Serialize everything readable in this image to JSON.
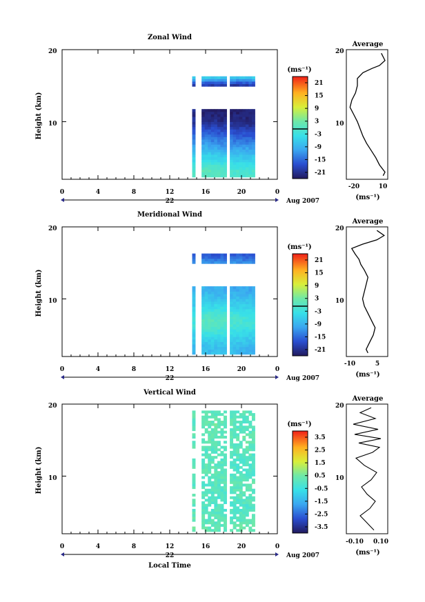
{
  "panels": [
    {
      "title": "Zonal Wind",
      "ylabel": "Height (km)",
      "yticks": [
        "20",
        "10"
      ],
      "xticks": [
        "0",
        "4",
        "8",
        "12",
        "16",
        "20",
        "0"
      ],
      "date_mark": "22",
      "date_label": "Aug 2007",
      "colorbar_unit": "(ms⁻¹)",
      "colorbar_ticks": [
        "21",
        "15",
        "9",
        "3",
        "-3",
        "-9",
        "-15",
        "-21"
      ],
      "avg_title": "Average",
      "avg_yticks": [
        "20",
        "10"
      ],
      "avg_xticks": [
        "-20",
        "10"
      ],
      "avg_xlabel": "(ms⁻¹)"
    },
    {
      "title": "Meridional Wind",
      "ylabel": "Height (km)",
      "yticks": [
        "20",
        "10"
      ],
      "xticks": [
        "0",
        "4",
        "8",
        "12",
        "16",
        "20",
        "0"
      ],
      "date_mark": "22",
      "date_label": "Aug 2007",
      "colorbar_unit": "(ms⁻¹)",
      "colorbar_ticks": [
        "21",
        "15",
        "9",
        "3",
        "-3",
        "-9",
        "-15",
        "-21"
      ],
      "avg_title": "Average",
      "avg_yticks": [
        "20",
        "10"
      ],
      "avg_xticks": [
        "-10",
        "5"
      ],
      "avg_xlabel": "(ms⁻¹)"
    },
    {
      "title": "Vertical Wind",
      "ylabel": "Height (km)",
      "yticks": [
        "20",
        "10"
      ],
      "xticks": [
        "0",
        "4",
        "8",
        "12",
        "16",
        "20",
        "0"
      ],
      "date_mark": "22",
      "date_label": "Aug 2007",
      "xlabel": "Local Time",
      "colorbar_unit": "(ms⁻¹)",
      "colorbar_ticks": [
        "3.5",
        "2.5",
        "1.5",
        "0.5",
        "-0.5",
        "-1.5",
        "-2.5",
        "-3.5"
      ],
      "avg_title": "Average",
      "avg_yticks": [
        "20",
        "10"
      ],
      "avg_xticks": [
        "-0.10",
        "0.10"
      ],
      "avg_xlabel": "(ms⁻¹)"
    }
  ],
  "chart_data": [
    {
      "type": "heatmap",
      "title": "Zonal Wind",
      "xlabel": "",
      "ylabel": "Height (km)",
      "xlim": [
        0,
        24
      ],
      "ylim": [
        2,
        20
      ],
      "colorbar_range": [
        -24,
        24
      ],
      "data_x_range": [
        14.5,
        21.5
      ],
      "data_heights": [
        3,
        4,
        5,
        6,
        7,
        8,
        9,
        10,
        11,
        15,
        16
      ],
      "profiles": [
        {
          "hour": 14.5,
          "values": [
            0,
            -3,
            -6,
            -9,
            -12,
            -15,
            -18,
            -21,
            -22,
            -19,
            -6
          ]
        },
        {
          "hour": 16.0,
          "values": [
            1,
            -2,
            -5,
            -8,
            -12,
            -15,
            -18,
            -21,
            -23,
            -19,
            -5
          ]
        },
        {
          "hour": 17.5,
          "values": [
            0,
            -3,
            -6,
            -10,
            -13,
            -16,
            -19,
            -22,
            -23,
            -20,
            -6
          ]
        },
        {
          "hour": 19.0,
          "values": [
            -1,
            -4,
            -7,
            -10,
            -13,
            -16,
            -19,
            -22,
            -23,
            -20,
            -7
          ]
        },
        {
          "hour": 20.5,
          "values": [
            -1,
            -4,
            -7,
            -10,
            -14,
            -17,
            -20,
            -22,
            -23,
            -19,
            -6
          ]
        }
      ],
      "gaps": [
        15.0,
        18.5
      ],
      "average_profile": {
        "x": [
          10,
          12,
          6,
          2,
          -3,
          -8,
          -12,
          -15,
          -18,
          -22,
          -26,
          -24,
          -20,
          -18,
          -18,
          -12,
          -2,
          6,
          12,
          8
        ],
        "y": [
          2.5,
          3,
          4,
          5,
          6,
          7,
          8,
          9,
          10,
          11,
          12,
          13,
          14,
          15,
          16,
          16.8,
          17.4,
          17.8,
          18.5,
          19.5
        ],
        "xlim": [
          -30,
          15
        ]
      }
    },
    {
      "type": "heatmap",
      "title": "Meridional Wind",
      "xlabel": "",
      "ylabel": "Height (km)",
      "xlim": [
        0,
        24
      ],
      "ylim": [
        2,
        20
      ],
      "colorbar_range": [
        -24,
        24
      ],
      "data_x_range": [
        14.5,
        21.5
      ],
      "data_heights": [
        3,
        4,
        5,
        6,
        7,
        8,
        9,
        10,
        11,
        15,
        16
      ],
      "profiles": [
        {
          "hour": 14.5,
          "values": [
            -8,
            -7,
            -5,
            -3,
            -2,
            -4,
            -6,
            -7,
            -8,
            -12,
            -16
          ]
        },
        {
          "hour": 16.0,
          "values": [
            -8,
            -6,
            -3,
            0,
            1,
            -2,
            -5,
            -7,
            -9,
            -12,
            -17
          ]
        },
        {
          "hour": 17.5,
          "values": [
            -7,
            -6,
            -3,
            -1,
            0,
            -2,
            -5,
            -8,
            -9,
            -13,
            -17
          ]
        },
        {
          "hour": 19.0,
          "values": [
            -8,
            -6,
            -4,
            -2,
            -1,
            -3,
            -6,
            -8,
            -10,
            -12,
            -16
          ]
        },
        {
          "hour": 20.5,
          "values": [
            -9,
            -7,
            -5,
            -3,
            -2,
            -4,
            -6,
            -8,
            -10,
            -13,
            -17
          ]
        }
      ],
      "gaps": [
        15.0,
        18.5
      ],
      "average_profile": {
        "x": [
          -3,
          -4,
          -2,
          0,
          1,
          -1,
          -3,
          -5,
          -6,
          -5,
          -4,
          -3,
          -5,
          -7,
          -8,
          -10,
          -12,
          -6,
          2,
          6,
          2
        ],
        "y": [
          2.5,
          3,
          4,
          5,
          6,
          7,
          8,
          9,
          10,
          11,
          12,
          13,
          14,
          14.8,
          15.5,
          16.2,
          17,
          17.6,
          18.2,
          18.8,
          19.5
        ],
        "xlim": [
          -15,
          8
        ]
      }
    },
    {
      "type": "heatmap",
      "title": "Vertical Wind",
      "xlabel": "Local Time",
      "ylabel": "Height (km)",
      "xlim": [
        0,
        24
      ],
      "ylim": [
        2,
        20
      ],
      "colorbar_range": [
        -4,
        4
      ],
      "data_x_range": [
        14.5,
        21.5
      ],
      "data_heights": [
        3,
        5,
        7,
        9,
        11,
        13,
        15,
        17,
        19
      ],
      "profiles": [
        {
          "hour": 14.5,
          "values": [
            0.4,
            0.1,
            0.3,
            -0.1,
            0.2,
            0.0,
            0.3,
            0.1,
            0.2
          ]
        },
        {
          "hour": 17.0,
          "values": [
            0.2,
            0.0,
            -0.2,
            0.1,
            0.3,
            -0.1,
            0.2,
            0.4,
            0.0
          ]
        },
        {
          "hour": 19.5,
          "values": [
            0.3,
            -0.1,
            0.1,
            0.2,
            -0.2,
            0.1,
            0.3,
            0.0,
            0.2
          ]
        }
      ],
      "gaps": [
        15.0,
        18.5
      ],
      "average_profile": {
        "x": [
          0.05,
          0.0,
          -0.05,
          0.02,
          0.06,
          0.0,
          -0.04,
          0.03,
          0.07,
          -0.02,
          -0.08,
          0.04,
          0.09,
          -0.06,
          0.1,
          -0.09,
          0.08,
          -0.1,
          0.06,
          -0.05,
          0.03
        ],
        "y": [
          2.5,
          3.5,
          4.5,
          5.5,
          6.5,
          7.5,
          8.5,
          9.5,
          10.5,
          11.5,
          12.5,
          13.3,
          14,
          14.6,
          15.2,
          15.8,
          16.5,
          17.2,
          18,
          18.8,
          19.5
        ],
        "xlim": [
          -0.15,
          0.15
        ]
      }
    }
  ]
}
